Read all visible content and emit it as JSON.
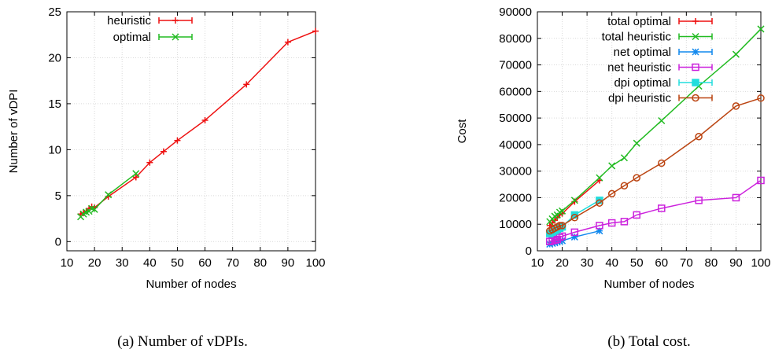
{
  "chart_data": [
    {
      "type": "line",
      "title": "",
      "xlabel": "Number of nodes",
      "ylabel": "Number of vDPI",
      "xlim": [
        10,
        100
      ],
      "ylim": [
        -1,
        25
      ],
      "xticks": [
        10,
        20,
        30,
        40,
        50,
        60,
        70,
        80,
        90,
        100
      ],
      "yticks": [
        0,
        5,
        10,
        15,
        20,
        25
      ],
      "grid": true,
      "legend_position": "top-left",
      "caption": "(a) Number of vDPIs.",
      "series": [
        {
          "name": "heuristic",
          "color": "#ee1111",
          "marker": "plus",
          "x": [
            15,
            16,
            17,
            18,
            19,
            20,
            25,
            35,
            40,
            45,
            50,
            60,
            75,
            90,
            100
          ],
          "y": [
            3.0,
            3.1,
            3.3,
            3.6,
            3.8,
            3.7,
            4.9,
            7.0,
            8.6,
            9.8,
            11.0,
            13.2,
            17.1,
            21.7,
            22.9
          ]
        },
        {
          "name": "optimal",
          "color": "#22bb22",
          "marker": "x",
          "x": [
            15,
            16,
            17,
            18,
            19,
            20,
            25,
            35
          ],
          "y": [
            2.7,
            3.0,
            3.2,
            3.3,
            3.6,
            3.5,
            5.1,
            7.4
          ]
        }
      ]
    },
    {
      "type": "line",
      "title": "",
      "xlabel": "Number of nodes",
      "ylabel": "Cost",
      "xlim": [
        10,
        100
      ],
      "ylim": [
        0,
        90000
      ],
      "xticks": [
        10,
        20,
        30,
        40,
        50,
        60,
        70,
        80,
        90,
        100
      ],
      "yticks": [
        0,
        10000,
        20000,
        30000,
        40000,
        50000,
        60000,
        70000,
        80000,
        90000
      ],
      "grid": true,
      "legend_position": "top-left",
      "caption": "(b) Total cost.",
      "series": [
        {
          "name": "total optimal",
          "color": "#ee1111",
          "marker": "plus",
          "x": [
            15,
            16,
            17,
            18,
            19,
            20,
            25,
            35
          ],
          "y": [
            9500,
            10500,
            11500,
            12500,
            13500,
            14000,
            18500,
            26500
          ]
        },
        {
          "name": "total heuristic",
          "color": "#22bb22",
          "marker": "x",
          "x": [
            15,
            16,
            17,
            18,
            19,
            20,
            25,
            35,
            40,
            45,
            50,
            60,
            75,
            90,
            100
          ],
          "y": [
            11000,
            12000,
            13000,
            13500,
            14500,
            15000,
            19000,
            27500,
            32000,
            35000,
            40500,
            49000,
            62000,
            74000,
            83500
          ]
        },
        {
          "name": "net optimal",
          "color": "#1188ee",
          "marker": "star",
          "x": [
            15,
            16,
            17,
            18,
            19,
            20,
            25,
            35
          ],
          "y": [
            2500,
            2800,
            3000,
            3300,
            3500,
            3800,
            5200,
            7500
          ]
        },
        {
          "name": "net heuristic",
          "color": "#cc22dd",
          "marker": "square",
          "x": [
            15,
            16,
            17,
            18,
            19,
            20,
            25,
            35,
            40,
            45,
            50,
            60,
            75,
            90,
            100
          ],
          "y": [
            3500,
            3800,
            4000,
            4300,
            5000,
            5500,
            7000,
            9500,
            10500,
            11000,
            13500,
            16000,
            19000,
            20000,
            26500
          ]
        },
        {
          "name": "dpi optimal",
          "color": "#22dddd",
          "marker": "filled-square",
          "x": [
            15,
            16,
            17,
            18,
            19,
            20,
            25,
            35
          ],
          "y": [
            6500,
            7000,
            7500,
            8000,
            8500,
            9000,
            13500,
            19000
          ]
        },
        {
          "name": "dpi heuristic",
          "color": "#bb4411",
          "marker": "circle",
          "x": [
            15,
            16,
            17,
            18,
            19,
            20,
            25,
            35,
            40,
            45,
            50,
            60,
            75,
            90,
            100
          ],
          "y": [
            7500,
            8000,
            8500,
            9000,
            9500,
            9500,
            12500,
            18000,
            21500,
            24500,
            27500,
            33000,
            43000,
            54500,
            57500
          ]
        }
      ]
    }
  ]
}
